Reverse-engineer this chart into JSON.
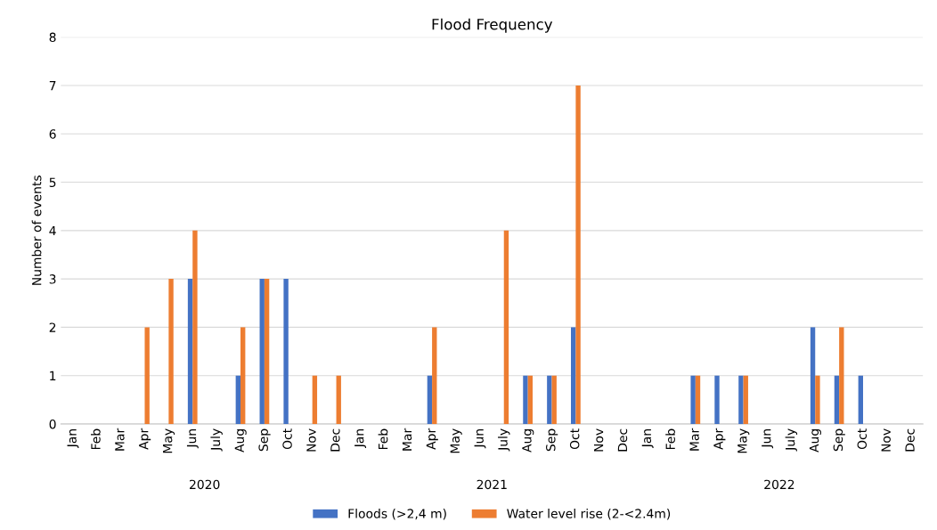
{
  "chart_data": {
    "type": "bar",
    "title": "Flood Frequency",
    "ylabel": "Number of events",
    "categories": [
      "Jan",
      "Feb",
      "Mar",
      "Apr",
      "May",
      "Jun",
      "July",
      "Aug",
      "Sep",
      "Oct",
      "Nov",
      "Dec",
      "Jan",
      "Feb",
      "Mar",
      "Apr",
      "May",
      "Jun",
      "July",
      "Aug",
      "Sep",
      "Oct",
      "Nov",
      "Dec",
      "Jan",
      "Feb",
      "Mar",
      "Apr",
      "May",
      "Jun",
      "July",
      "Aug",
      "Sep",
      "Oct",
      "Nov",
      "Dec"
    ],
    "series": [
      {
        "name": "Floods (>2,4 m)",
        "color": "#4472c4",
        "values": [
          0,
          0,
          0,
          0,
          0,
          3,
          0,
          1,
          3,
          3,
          0,
          0,
          0,
          0,
          0,
          1,
          0,
          0,
          0,
          1,
          1,
          2,
          0,
          0,
          0,
          0,
          1,
          1,
          1,
          0,
          0,
          2,
          1,
          1,
          0,
          0
        ]
      },
      {
        "name": "Water level rise (2-<2.4m)",
        "color": "#ed7d31",
        "values": [
          0,
          0,
          0,
          2,
          3,
          4,
          0,
          2,
          3,
          0,
          1,
          1,
          0,
          0,
          0,
          2,
          0,
          0,
          4,
          1,
          1,
          7,
          0,
          0,
          0,
          0,
          1,
          0,
          1,
          0,
          0,
          1,
          2,
          0,
          0,
          0
        ]
      }
    ],
    "annotations": [
      "2020",
      "2021",
      "2022"
    ],
    "ylim": [
      0,
      8
    ],
    "yticks": [
      0,
      1,
      2,
      3,
      4,
      5,
      6,
      7,
      8
    ],
    "grid": "y",
    "legend": "bottom"
  }
}
